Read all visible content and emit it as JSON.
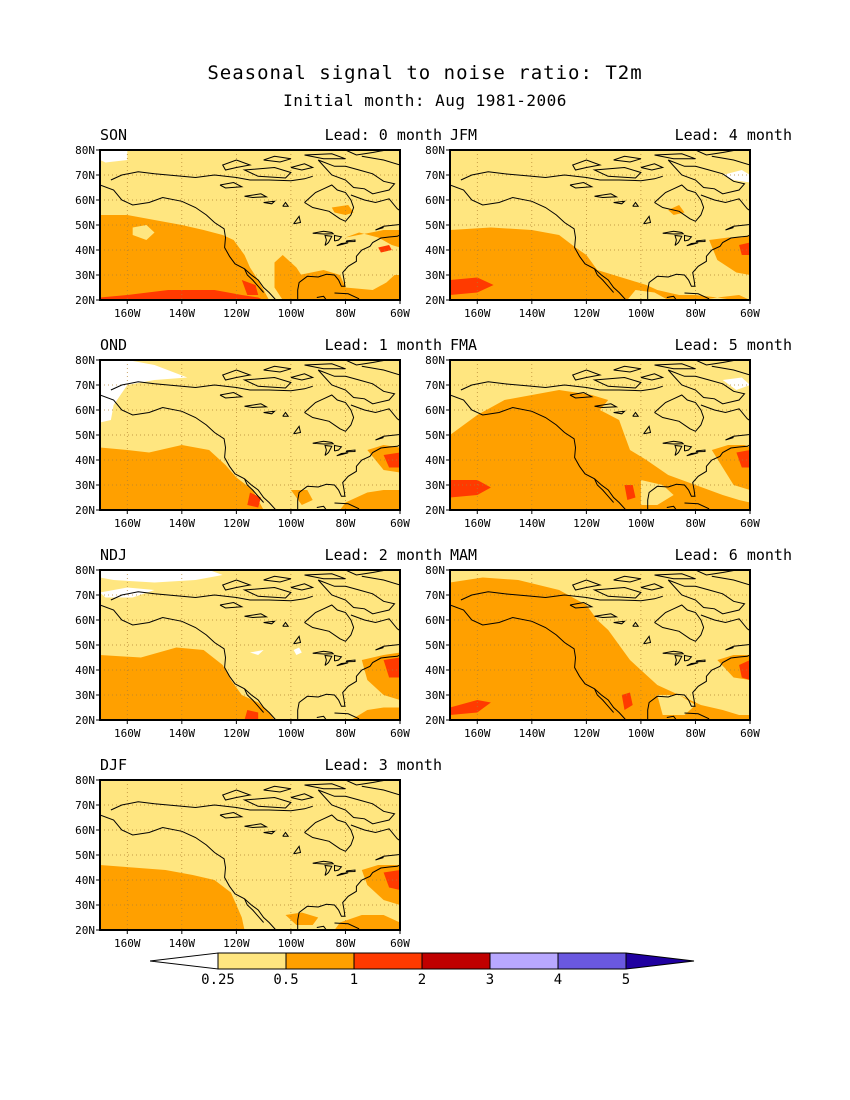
{
  "title": "Seasonal signal to noise ratio: T2m",
  "subtitle": "Initial month: Aug 1981-2006",
  "lat_ticks": [
    "80N",
    "70N",
    "60N",
    "50N",
    "40N",
    "30N",
    "20N"
  ],
  "lon_ticks": [
    "160W",
    "140W",
    "120W",
    "100W",
    "80W",
    "60W"
  ],
  "colors": {
    "c0": "#ffffff",
    "c1": "#ffe680",
    "c2": "#ffa000",
    "c3": "#ff3a00",
    "c4": "#c00000",
    "c5": "#b8a8ff",
    "c6": "#6a58e0",
    "c7": "#2000a0"
  },
  "colorbar": {
    "labels": [
      "0.25",
      "0.5",
      "1",
      "2",
      "3",
      "4",
      "5"
    ]
  },
  "panels": [
    {
      "season": "SON",
      "lead": "Lead: 0 month"
    },
    {
      "season": "JFM",
      "lead": "Lead: 4 month"
    },
    {
      "season": "OND",
      "lead": "Lead: 1 month"
    },
    {
      "season": "FMA",
      "lead": "Lead: 5 month"
    },
    {
      "season": "NDJ",
      "lead": "Lead: 2 month"
    },
    {
      "season": "MAM",
      "lead": "Lead: 6 month"
    },
    {
      "season": "DJF",
      "lead": "Lead: 3 month"
    }
  ]
}
